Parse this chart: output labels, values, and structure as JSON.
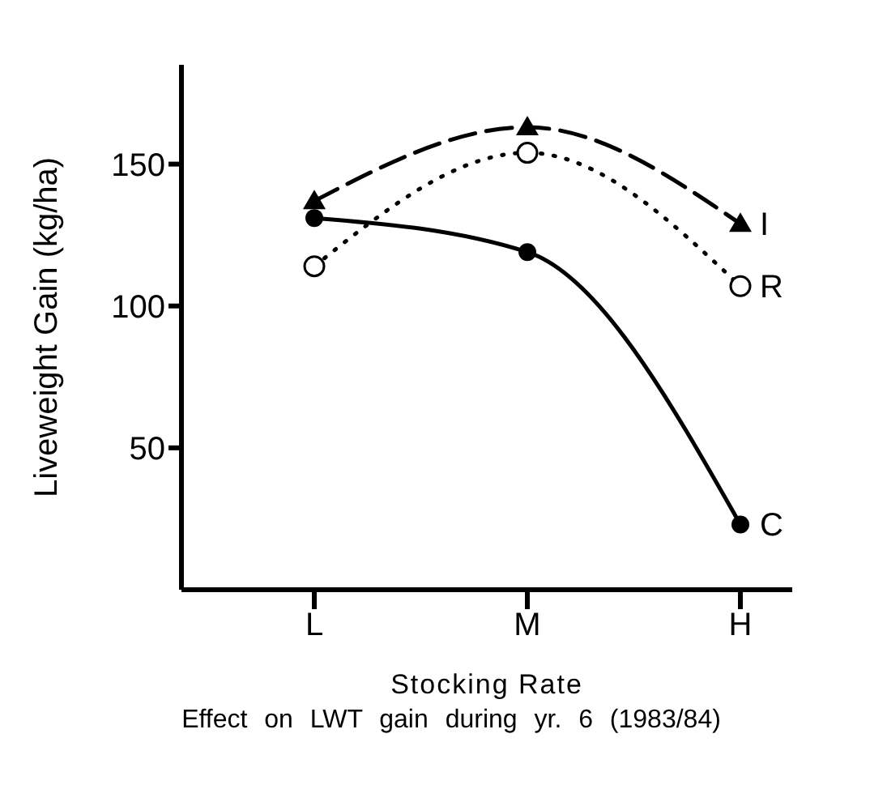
{
  "chart_data": {
    "type": "line",
    "xlabel": "Stocking Rate",
    "ylabel": "Liveweight Gain (kg/ha)",
    "annotations": [
      "Effect on LWT gain during yr. 6 (1983/84)"
    ],
    "categories": [
      "L",
      "M",
      "H"
    ],
    "ylim": [
      0,
      185
    ],
    "yticks": [
      50,
      100,
      150
    ],
    "grid": false,
    "legend": false,
    "series": [
      {
        "name": "I",
        "color": "#000000",
        "values": [
          137,
          163,
          129
        ],
        "marker": "triangle",
        "line_style": "dashed"
      },
      {
        "name": "R",
        "color": "#000000",
        "values": [
          114,
          154,
          107
        ],
        "marker": "circle-open",
        "line_style": "dotted"
      },
      {
        "name": "C",
        "color": "#000000",
        "values": [
          131,
          119,
          23
        ],
        "marker": "circle",
        "line_style": "solid"
      }
    ]
  }
}
